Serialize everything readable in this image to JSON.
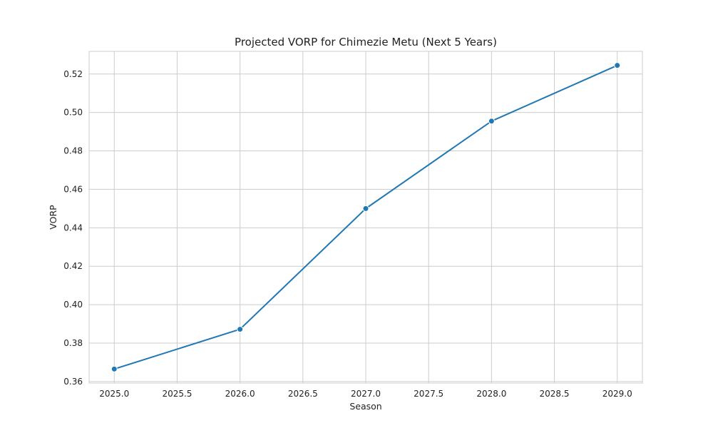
{
  "chart_data": {
    "type": "line",
    "title": "Projected VORP for Chimezie Metu (Next 5 Years)",
    "xlabel": "Season",
    "ylabel": "VORP",
    "xlim": [
      2024.8,
      2029.2
    ],
    "ylim": [
      0.3592,
      0.5318
    ],
    "x_ticks": [
      2025.0,
      2025.5,
      2026.0,
      2026.5,
      2027.0,
      2027.5,
      2028.0,
      2028.5,
      2029.0
    ],
    "x_tick_labels": [
      "2025.0",
      "2025.5",
      "2026.0",
      "2026.5",
      "2027.0",
      "2027.5",
      "2028.0",
      "2028.5",
      "2029.0"
    ],
    "y_ticks": [
      0.36,
      0.38,
      0.4,
      0.42,
      0.44,
      0.46,
      0.48,
      0.5,
      0.52
    ],
    "y_tick_labels": [
      "0.36",
      "0.38",
      "0.40",
      "0.42",
      "0.44",
      "0.46",
      "0.48",
      "0.50",
      "0.52"
    ],
    "grid": true,
    "series": [
      {
        "x": [
          2025,
          2026,
          2027,
          2028,
          2029
        ],
        "y": [
          0.3665,
          0.3872,
          0.45,
          0.4955,
          0.5245
        ],
        "color": "#1f77b4",
        "marker": "circle"
      }
    ]
  }
}
